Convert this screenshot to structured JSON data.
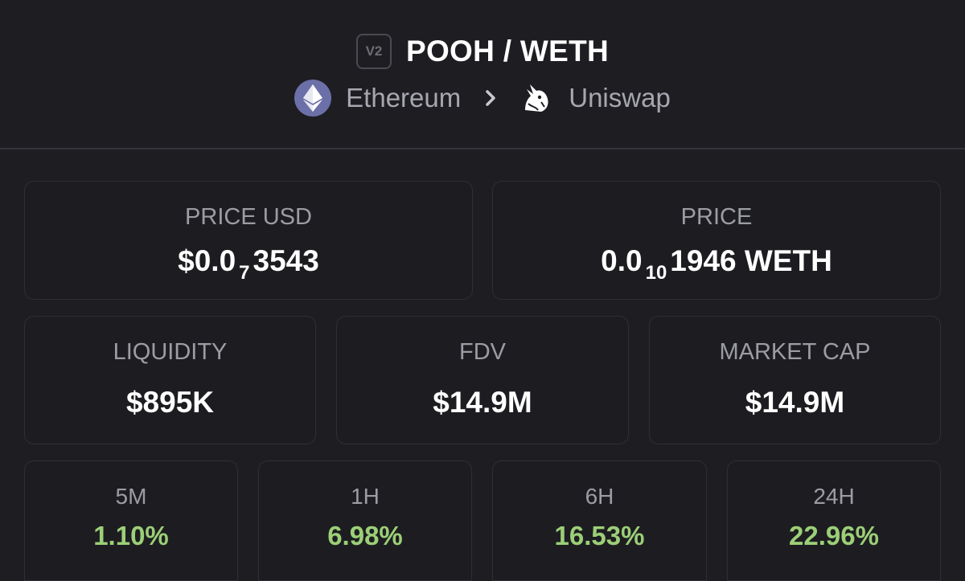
{
  "header": {
    "version_badge": "V2",
    "pair_title": "POOH / WETH",
    "chain": {
      "label": "Ethereum",
      "icon": "ethereum-icon"
    },
    "dex": {
      "label": "Uniswap",
      "icon": "uniswap-unicorn-icon"
    },
    "separator_icon": "chevron-right-icon"
  },
  "price_usd": {
    "label": "PRICE USD",
    "prefix": "$0.0",
    "zero_count": "7",
    "digits": "3543"
  },
  "price_native": {
    "label": "PRICE",
    "prefix": "0.0",
    "zero_count": "10",
    "digits": "1946",
    "unit": "WETH"
  },
  "stats": [
    {
      "label": "LIQUIDITY",
      "value": "$895K"
    },
    {
      "label": "FDV",
      "value": "$14.9M"
    },
    {
      "label": "MARKET CAP",
      "value": "$14.9M"
    }
  ],
  "changes": [
    {
      "label": "5M",
      "value": "1.10%"
    },
    {
      "label": "1H",
      "value": "6.98%"
    },
    {
      "label": "6H",
      "value": "16.53%"
    },
    {
      "label": "24H",
      "value": "22.96%"
    }
  ],
  "colors": {
    "background": "#1e1e22",
    "positive": "#9ccf77",
    "muted_text": "#9c9ca5",
    "ethereum_badge": "#6c70a8"
  }
}
